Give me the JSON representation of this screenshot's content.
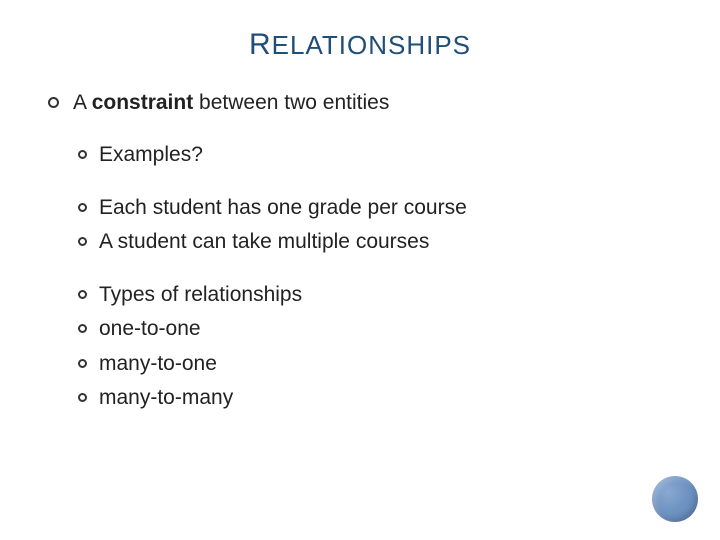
{
  "title_cap": "R",
  "title_rest": "ELATIONSHIPS",
  "colors": {
    "title": "#1f4e79",
    "text": "#222222",
    "bullet_border": "#333333",
    "background": "#ffffff",
    "accent_circle": "#6f93c2"
  },
  "fonts": {
    "title_size_cap": 30,
    "title_size_rest": 26,
    "body_size": 21
  },
  "lines": {
    "constraint_prefix": "A ",
    "constraint_bold": "constraint",
    "constraint_suffix": " between two entities",
    "examples": "Examples?",
    "ex1": "Each student has one grade per course",
    "ex2": "A student can take multiple courses",
    "types_header": "Types of relationships",
    "type1": "one-to-one",
    "type2": "many-to-one",
    "type3": " many-to-many"
  }
}
